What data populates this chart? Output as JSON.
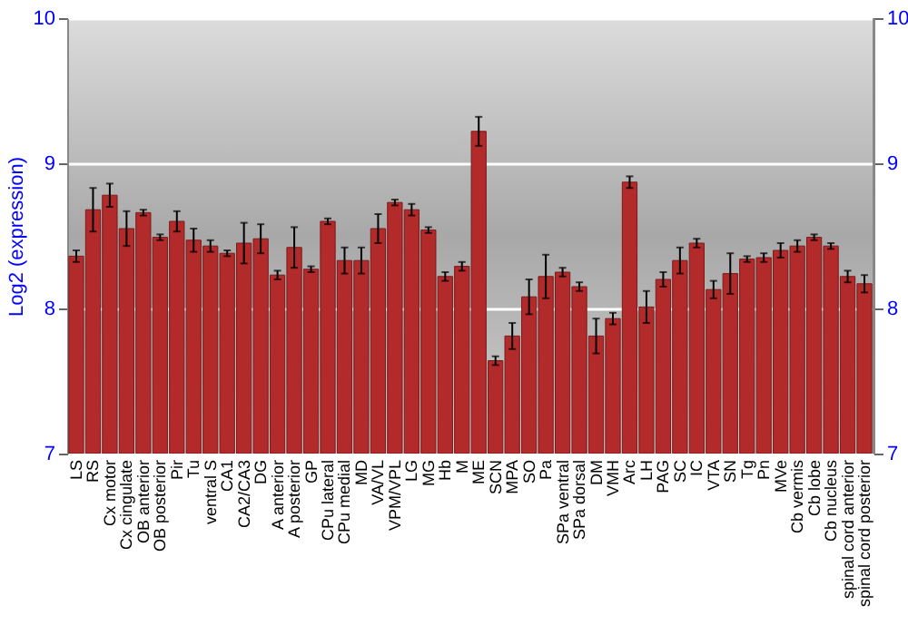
{
  "chart_data": {
    "type": "bar",
    "ylabel": "Log2 (expression)",
    "categories": [
      "LS",
      "RS",
      "Cx motor",
      "Cx cingulate",
      "OB anterior",
      "OB posterior",
      "Pir",
      "Tu",
      "ventral S",
      "CA1",
      "CA2/CA3",
      "DG",
      "A anterior",
      "A posterior",
      "GP",
      "CPu lateral",
      "CPu medial",
      "MD",
      "VA/VL",
      "VPM/VPL",
      "LG",
      "MG",
      "Hb",
      "M",
      "ME",
      "SCN",
      "MPA",
      "SO",
      "Pa",
      "SPa ventral",
      "SPa dorsal",
      "DM",
      "VMH",
      "Arc",
      "LH",
      "PAG",
      "SC",
      "IC",
      "VTA",
      "SN",
      "Tg",
      "Pn",
      "MVe",
      "Cb vermis",
      "Cb lobe",
      "Cb nucleus",
      "spinal cord anterior",
      "spinal cord posterior"
    ],
    "series": [
      {
        "color": "#b22a2a",
        "values": [
          8.36,
          8.68,
          8.78,
          8.55,
          8.66,
          8.49,
          8.6,
          8.47,
          8.43,
          8.38,
          8.45,
          8.48,
          8.23,
          8.42,
          8.27,
          8.6,
          8.33,
          8.33,
          8.55,
          8.73,
          8.68,
          8.54,
          8.22,
          8.29,
          9.22,
          7.64,
          7.81,
          8.08,
          8.22,
          8.25,
          8.15,
          7.81,
          7.93,
          8.87,
          8.01,
          8.2,
          8.33,
          8.45,
          8.13,
          8.24,
          8.34,
          8.35,
          8.4,
          8.43,
          8.49,
          8.43,
          8.22,
          8.17
        ],
        "errors": [
          0.04,
          0.15,
          0.08,
          0.12,
          0.02,
          0.02,
          0.07,
          0.08,
          0.04,
          0.02,
          0.14,
          0.1,
          0.03,
          0.14,
          0.02,
          0.02,
          0.09,
          0.09,
          0.1,
          0.02,
          0.04,
          0.02,
          0.03,
          0.03,
          0.1,
          0.03,
          0.09,
          0.12,
          0.15,
          0.03,
          0.03,
          0.12,
          0.04,
          0.04,
          0.11,
          0.05,
          0.09,
          0.03,
          0.06,
          0.14,
          0.02,
          0.03,
          0.05,
          0.04,
          0.02,
          0.02,
          0.04,
          0.06
        ]
      }
    ],
    "ylim": [
      7,
      10
    ],
    "yticks": [
      7,
      8,
      9,
      10
    ],
    "y2lim": [
      7,
      10
    ],
    "y2ticks": [
      7,
      8,
      9,
      10
    ],
    "grid": "y"
  }
}
